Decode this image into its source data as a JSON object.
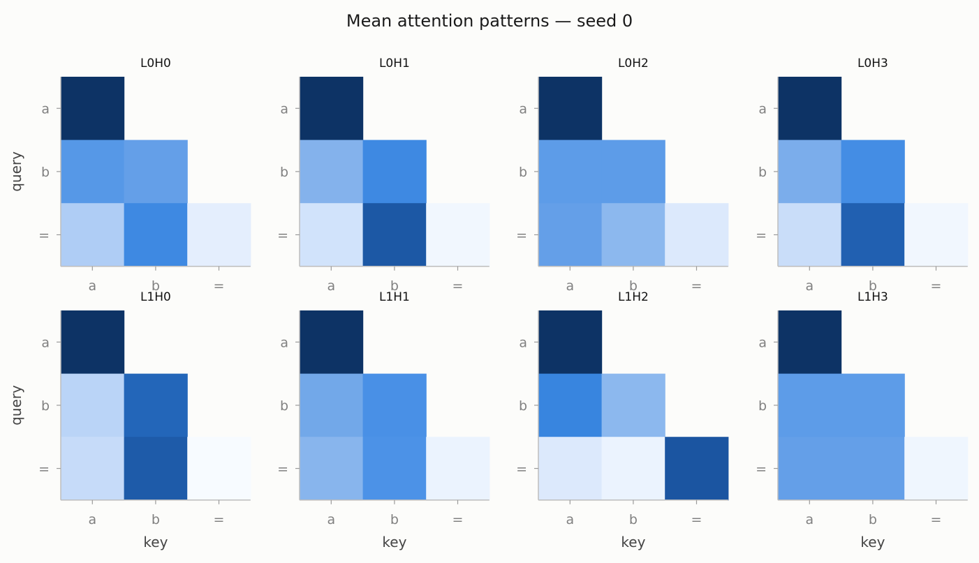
{
  "chart_data": {
    "type": "heatmap",
    "title": "Mean attention patterns — seed 0",
    "xlabel": "key",
    "ylabel": "query",
    "x_ticks": [
      "a",
      "b",
      "="
    ],
    "y_ticks": [
      "a",
      "b",
      "="
    ],
    "value_range": [
      0,
      1
    ],
    "mask": "causal (upper triangle empty)",
    "colormap": "Blues",
    "grid": false,
    "layout": {
      "rows": 2,
      "cols": 4
    },
    "panels": [
      {
        "name": "L0H0",
        "values": [
          [
            1.0,
            null,
            null
          ],
          [
            0.52,
            0.48,
            null
          ],
          [
            0.3,
            0.6,
            0.1
          ]
        ]
      },
      {
        "name": "L0H1",
        "values": [
          [
            1.0,
            null,
            null
          ],
          [
            0.4,
            0.6,
            null
          ],
          [
            0.18,
            0.79,
            0.03
          ]
        ]
      },
      {
        "name": "L0H2",
        "values": [
          [
            1.0,
            null,
            null
          ],
          [
            0.5,
            0.5,
            null
          ],
          [
            0.48,
            0.38,
            0.14
          ]
        ]
      },
      {
        "name": "L0H3",
        "values": [
          [
            1.0,
            null,
            null
          ],
          [
            0.42,
            0.58,
            null
          ],
          [
            0.21,
            0.76,
            0.03
          ]
        ]
      },
      {
        "name": "L1H0",
        "values": [
          [
            1.0,
            null,
            null
          ],
          [
            0.26,
            0.74,
            null
          ],
          [
            0.22,
            0.78,
            0.0
          ]
        ]
      },
      {
        "name": "L1H1",
        "values": [
          [
            1.0,
            null,
            null
          ],
          [
            0.44,
            0.56,
            null
          ],
          [
            0.39,
            0.55,
            0.06
          ]
        ]
      },
      {
        "name": "L1H2",
        "values": [
          [
            1.0,
            null,
            null
          ],
          [
            0.62,
            0.38,
            null
          ],
          [
            0.14,
            0.06,
            0.8
          ]
        ]
      },
      {
        "name": "L1H3",
        "values": [
          [
            1.0,
            null,
            null
          ],
          [
            0.5,
            0.5,
            null
          ],
          [
            0.48,
            0.48,
            0.04
          ]
        ]
      }
    ]
  }
}
